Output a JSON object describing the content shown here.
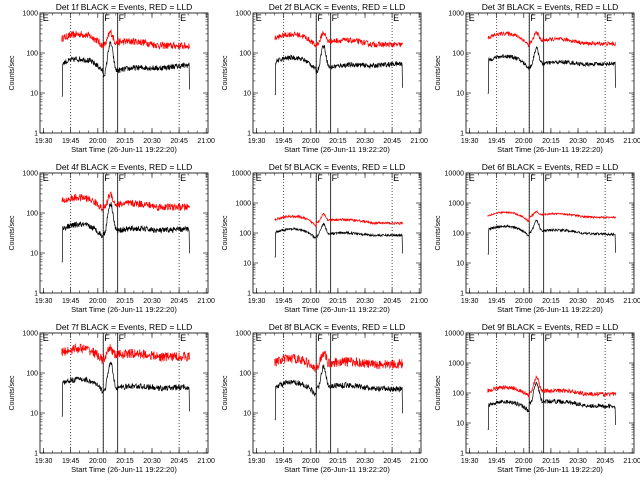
{
  "chart_data": [
    {
      "type": "line",
      "title": "Det 1f BLACK = Events, RED = LLD",
      "ylabel": "Counts/sec",
      "xlabel": "Start Time (26-Jun-11 19:22:20)",
      "xlim": [
        "19:28",
        "21:01"
      ],
      "ylim": [
        1,
        1000
      ],
      "yscale": "log",
      "ytick_labels": [
        "1",
        "10",
        "100",
        "1000"
      ],
      "xtick_labels": [
        "19:30",
        "19:45",
        "20:00",
        "20:15",
        "20:30",
        "20:45",
        "21:00"
      ],
      "flags": [
        {
          "label": "E",
          "time": "19:29"
        },
        {
          "label": "F",
          "time": "20:03"
        },
        {
          "label": "F",
          "time": "20:11"
        },
        {
          "label": "E",
          "time": "20:45"
        }
      ],
      "dotted_lines": [
        "19:45",
        "20:03",
        "20:45"
      ],
      "solid_lines": [
        "20:03",
        "20:11"
      ],
      "series": [
        {
          "color": "#ff0000",
          "start": 230,
          "mid": 160,
          "end": 150,
          "peak": 330,
          "noise": 0.09
        },
        {
          "color": "#000000",
          "start": 55,
          "mid": 28,
          "end": 50,
          "peak": 170,
          "noise": 0.07
        }
      ]
    },
    {
      "type": "line",
      "title": "Det 2f BLACK = Events, RED = LLD",
      "ylabel": "Counts/sec",
      "xlabel": "Start Time (26-Jun-11 19:22:20)",
      "xlim": [
        "19:28",
        "21:01"
      ],
      "ylim": [
        1,
        1000
      ],
      "yscale": "log",
      "ytick_labels": [
        "1",
        "10",
        "100",
        "1000"
      ],
      "xtick_labels": [
        "19:30",
        "19:45",
        "20:00",
        "20:15",
        "20:30",
        "20:45",
        "21:00"
      ],
      "flags": [
        {
          "label": "E",
          "time": "19:29"
        },
        {
          "label": "F",
          "time": "20:03"
        },
        {
          "label": "F",
          "time": "20:11"
        },
        {
          "label": "E",
          "time": "20:45"
        }
      ],
      "dotted_lines": [
        "19:45",
        "20:03",
        "20:45"
      ],
      "solid_lines": [
        "20:03",
        "20:11"
      ],
      "series": [
        {
          "color": "#ff0000",
          "start": 230,
          "mid": 170,
          "end": 160,
          "peak": 320,
          "noise": 0.07
        },
        {
          "color": "#000000",
          "start": 60,
          "mid": 35,
          "end": 55,
          "peak": 150,
          "noise": 0.06
        }
      ]
    },
    {
      "type": "line",
      "title": "Det 3f BLACK = Events, RED = LLD",
      "ylabel": "Counts/sec",
      "xlabel": "Start Time (26-Jun-11 19:22:20)",
      "xlim": [
        "19:28",
        "21:01"
      ],
      "ylim": [
        1,
        1000
      ],
      "yscale": "log",
      "ytick_labels": [
        "1",
        "10",
        "100",
        "1000"
      ],
      "xtick_labels": [
        "19:30",
        "19:45",
        "20:00",
        "20:15",
        "20:30",
        "20:45",
        "21:00"
      ],
      "flags": [
        {
          "label": "E",
          "time": "19:29"
        },
        {
          "label": "F",
          "time": "20:03"
        },
        {
          "label": "F",
          "time": "20:11"
        },
        {
          "label": "E",
          "time": "20:45"
        }
      ],
      "dotted_lines": [
        "19:45",
        "20:03",
        "20:45"
      ],
      "solid_lines": [
        "20:03",
        "20:11"
      ],
      "series": [
        {
          "color": "#ff0000",
          "start": 240,
          "mid": 180,
          "end": 170,
          "peak": 330,
          "noise": 0.05
        },
        {
          "color": "#000000",
          "start": 65,
          "mid": 45,
          "end": 55,
          "peak": 130,
          "noise": 0.05
        }
      ]
    },
    {
      "type": "line",
      "title": "Det 4f BLACK = Events, RED = LLD",
      "ylabel": "Counts/sec",
      "xlabel": "Start Time (26-Jun-11 19:22:20)",
      "xlim": [
        "19:28",
        "21:01"
      ],
      "ylim": [
        1,
        1000
      ],
      "yscale": "log",
      "ytick_labels": [
        "1",
        "10",
        "100",
        "1000"
      ],
      "xtick_labels": [
        "19:30",
        "19:45",
        "20:00",
        "20:15",
        "20:30",
        "20:45",
        "21:00"
      ],
      "flags": [
        {
          "label": "E",
          "time": "19:29"
        },
        {
          "label": "F",
          "time": "20:03"
        },
        {
          "label": "F",
          "time": "20:11"
        },
        {
          "label": "E",
          "time": "20:45"
        }
      ],
      "dotted_lines": [
        "19:45",
        "20:03",
        "20:45"
      ],
      "solid_lines": [
        "20:03",
        "20:11"
      ],
      "series": [
        {
          "color": "#ff0000",
          "start": 190,
          "mid": 140,
          "end": 140,
          "peak": 300,
          "noise": 0.09
        },
        {
          "color": "#000000",
          "start": 40,
          "mid": 30,
          "end": 40,
          "peak": 170,
          "noise": 0.07
        }
      ]
    },
    {
      "type": "line",
      "title": "Det 5f BLACK = Events, RED = LLD",
      "ylabel": "Counts/sec",
      "xlabel": "Start Time (26-Jun-11 19:22:20)",
      "xlim": [
        "19:28",
        "21:01"
      ],
      "ylim": [
        1,
        10000
      ],
      "yscale": "log",
      "ytick_labels": [
        "1",
        "10",
        "100",
        "1000",
        "10000"
      ],
      "xtick_labels": [
        "19:30",
        "19:45",
        "20:00",
        "20:15",
        "20:30",
        "20:45",
        "21:00"
      ],
      "flags": [
        {
          "label": "E",
          "time": "19:29"
        },
        {
          "label": "F",
          "time": "20:03"
        },
        {
          "label": "F",
          "time": "20:11"
        },
        {
          "label": "E",
          "time": "20:45"
        }
      ],
      "dotted_lines": [
        "19:45",
        "20:03",
        "20:45"
      ],
      "solid_lines": [
        "20:03",
        "20:11"
      ],
      "series": [
        {
          "color": "#ff0000",
          "start": 280,
          "mid": 230,
          "end": 210,
          "peak": 420,
          "noise": 0.04
        },
        {
          "color": "#000000",
          "start": 105,
          "mid": 80,
          "end": 85,
          "peak": 200,
          "noise": 0.04
        }
      ]
    },
    {
      "type": "line",
      "title": "Det 6f BLACK = Events, RED = LLD",
      "ylabel": "Counts/sec",
      "xlabel": "Start Time (26-Jun-11 19:22:20)",
      "xlim": [
        "19:28",
        "21:01"
      ],
      "ylim": [
        1,
        10000
      ],
      "yscale": "log",
      "ytick_labels": [
        "1",
        "10",
        "100",
        "1000",
        "10000"
      ],
      "xtick_labels": [
        "19:30",
        "19:45",
        "20:00",
        "20:15",
        "20:30",
        "20:45",
        "21:00"
      ],
      "flags": [
        {
          "label": "E",
          "time": "19:29"
        },
        {
          "label": "F",
          "time": "20:03"
        },
        {
          "label": "F",
          "time": "20:11"
        },
        {
          "label": "E",
          "time": "20:45"
        }
      ],
      "dotted_lines": [
        "19:45",
        "20:03",
        "20:45"
      ],
      "solid_lines": [
        "20:03",
        "20:11"
      ],
      "series": [
        {
          "color": "#ff0000",
          "start": 380,
          "mid": 360,
          "end": 330,
          "peak": 520,
          "noise": 0.03
        },
        {
          "color": "#000000",
          "start": 130,
          "mid": 105,
          "end": 90,
          "peak": 260,
          "noise": 0.04
        }
      ]
    },
    {
      "type": "line",
      "title": "Det 7f BLACK = Events, RED = LLD",
      "ylabel": "Counts/sec",
      "xlabel": "Start Time (26-Jun-11 19:22:20)",
      "xlim": [
        "19:28",
        "21:01"
      ],
      "ylim": [
        1,
        1000
      ],
      "yscale": "log",
      "ytick_labels": [
        "1",
        "10",
        "100",
        "1000"
      ],
      "xtick_labels": [
        "19:30",
        "19:45",
        "20:00",
        "20:15",
        "20:30",
        "20:45",
        "21:00"
      ],
      "flags": [
        {
          "label": "E",
          "time": "19:29"
        },
        {
          "label": "F",
          "time": "20:03"
        },
        {
          "label": "F",
          "time": "20:11"
        },
        {
          "label": "E",
          "time": "20:45"
        }
      ],
      "dotted_lines": [
        "19:45",
        "20:03",
        "20:45"
      ],
      "solid_lines": [
        "20:03",
        "20:11"
      ],
      "series": [
        {
          "color": "#ff0000",
          "start": 320,
          "mid": 240,
          "end": 260,
          "peak": 420,
          "noise": 0.12
        },
        {
          "color": "#000000",
          "start": 55,
          "mid": 35,
          "end": 45,
          "peak": 170,
          "noise": 0.07
        }
      ]
    },
    {
      "type": "line",
      "title": "Det 8f BLACK = Events, RED = LLD",
      "ylabel": "Counts/sec",
      "xlabel": "Start Time (26-Jun-11 19:22:20)",
      "xlim": [
        "19:28",
        "21:01"
      ],
      "ylim": [
        1,
        1000
      ],
      "yscale": "log",
      "ytick_labels": [
        "1",
        "10",
        "100",
        "1000"
      ],
      "xtick_labels": [
        "19:30",
        "19:45",
        "20:00",
        "20:15",
        "20:30",
        "20:45",
        "21:00"
      ],
      "flags": [
        {
          "label": "E",
          "time": "19:29"
        },
        {
          "label": "F",
          "time": "20:03"
        },
        {
          "label": "F",
          "time": "20:11"
        },
        {
          "label": "E",
          "time": "20:45"
        }
      ],
      "dotted_lines": [
        "19:45",
        "20:03",
        "20:45"
      ],
      "solid_lines": [
        "20:03",
        "20:11"
      ],
      "series": [
        {
          "color": "#ff0000",
          "start": 180,
          "mid": 150,
          "end": 170,
          "peak": 330,
          "noise": 0.12
        },
        {
          "color": "#000000",
          "start": 45,
          "mid": 40,
          "end": 40,
          "peak": 140,
          "noise": 0.07
        }
      ]
    },
    {
      "type": "line",
      "title": "Det 9f BLACK = Events, RED = LLD",
      "ylabel": "Counts/sec",
      "xlabel": "Start Time (26-Jun-11 19:22:20)",
      "xlim": [
        "19:28",
        "21:01"
      ],
      "ylim": [
        1,
        10000
      ],
      "yscale": "log",
      "ytick_labels": [
        "1",
        "10",
        "100",
        "1000",
        "10000"
      ],
      "xtick_labels": [
        "19:30",
        "19:45",
        "20:00",
        "20:15",
        "20:30",
        "20:45",
        "21:00"
      ],
      "flags": [
        {
          "label": "E",
          "time": "19:29"
        },
        {
          "label": "F",
          "time": "20:03"
        },
        {
          "label": "F",
          "time": "20:11"
        },
        {
          "label": "E",
          "time": "20:45"
        }
      ],
      "dotted_lines": [
        "19:45",
        "20:03",
        "20:45"
      ],
      "solid_lines": [
        "20:03",
        "20:11"
      ],
      "series": [
        {
          "color": "#ff0000",
          "start": 120,
          "mid": 100,
          "end": 90,
          "peak": 340,
          "noise": 0.07
        },
        {
          "color": "#000000",
          "start": 40,
          "mid": 45,
          "end": 35,
          "peak": 200,
          "noise": 0.07
        }
      ]
    }
  ]
}
